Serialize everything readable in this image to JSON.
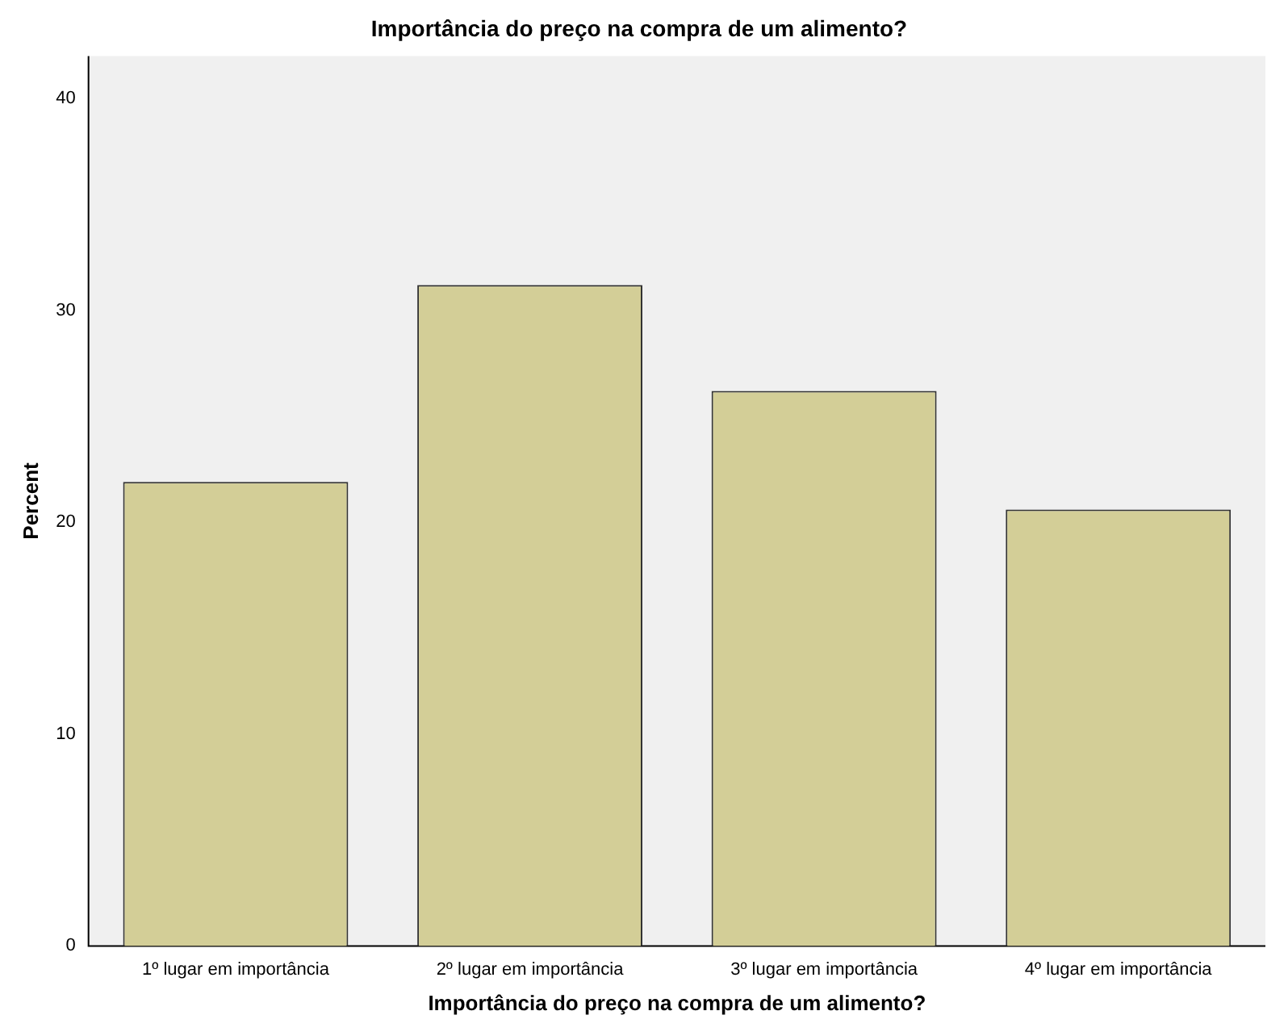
{
  "chart_data": {
    "type": "bar",
    "title": "Importância do preço na compra de um alimento?",
    "xlabel": "Importância do preço na compra de um alimento?",
    "ylabel": "Percent",
    "categories": [
      "1º lugar em importância",
      "2º lugar em importância",
      "3º lugar em importância",
      "4º lugar em importância"
    ],
    "values": [
      21.9,
      31.2,
      26.2,
      20.6
    ],
    "color": "#d3ce97",
    "ylim": [
      0,
      42
    ],
    "yticks": [
      0,
      10,
      20,
      30,
      40
    ],
    "grid": false,
    "legend": false
  }
}
